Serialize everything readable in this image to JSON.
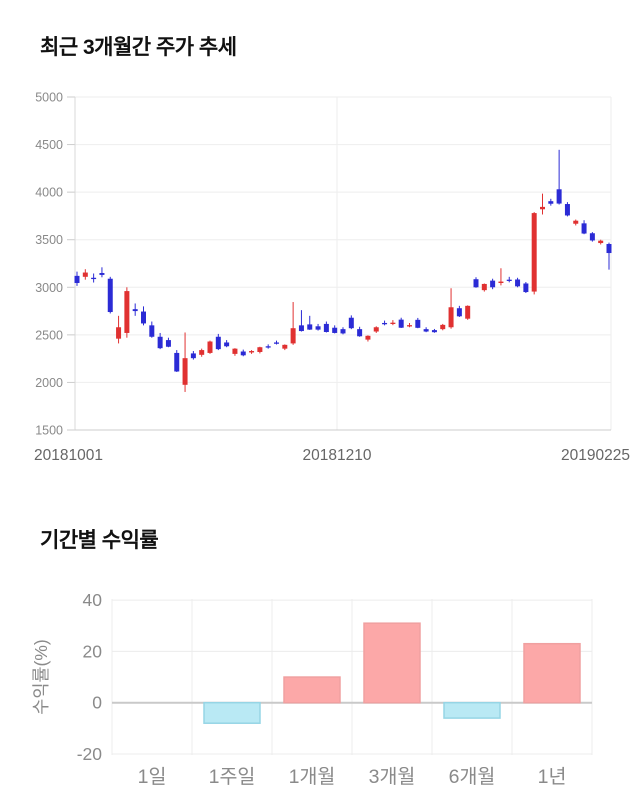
{
  "chart_data": [
    {
      "type": "candlestick",
      "title": "최근 3개월간 주가 추세",
      "xlabel": "",
      "ylabel": "",
      "y_ticks": [
        5000,
        4500,
        4000,
        3500,
        3000,
        2500,
        2000,
        1500
      ],
      "ylim": [
        1500,
        5000
      ],
      "x_tick_labels": [
        "20181001",
        "20181210",
        "20190225"
      ],
      "grid": true,
      "colors": {
        "up": "#e03131",
        "down": "#2b2bd5",
        "grid_line": "#eeeeee",
        "axis_line": "#cccccc",
        "tick_text": "#898989",
        "date_text": "#666666"
      },
      "candles_ohlc": [
        [
          3120,
          3165,
          3015,
          3045
        ],
        [
          3110,
          3190,
          3080,
          3155
        ],
        [
          3100,
          3145,
          3050,
          3090
        ],
        [
          3150,
          3210,
          3105,
          3130
        ],
        [
          3090,
          3110,
          2725,
          2740
        ],
        [
          2460,
          2700,
          2410,
          2580
        ],
        [
          2520,
          3000,
          2470,
          2960
        ],
        [
          2770,
          2830,
          2700,
          2750
        ],
        [
          2745,
          2800,
          2600,
          2620
        ],
        [
          2600,
          2640,
          2470,
          2480
        ],
        [
          2480,
          2520,
          2350,
          2360
        ],
        [
          2445,
          2470,
          2370,
          2375
        ],
        [
          2310,
          2340,
          2110,
          2115
        ],
        [
          1975,
          2525,
          1900,
          2255
        ],
        [
          2305,
          2330,
          2240,
          2255
        ],
        [
          2290,
          2355,
          2270,
          2340
        ],
        [
          2310,
          2440,
          2300,
          2430
        ],
        [
          2480,
          2510,
          2340,
          2350
        ],
        [
          2420,
          2445,
          2370,
          2380
        ],
        [
          2300,
          2360,
          2280,
          2355
        ],
        [
          2325,
          2345,
          2275,
          2285
        ],
        [
          2315,
          2340,
          2300,
          2330
        ],
        [
          2320,
          2375,
          2305,
          2370
        ],
        [
          2380,
          2400,
          2355,
          2378
        ],
        [
          2420,
          2440,
          2398,
          2418
        ],
        [
          2355,
          2400,
          2340,
          2395
        ],
        [
          2410,
          2845,
          2395,
          2570
        ],
        [
          2600,
          2760,
          2535,
          2540
        ],
        [
          2610,
          2700,
          2552,
          2555
        ],
        [
          2590,
          2615,
          2545,
          2555
        ],
        [
          2615,
          2640,
          2525,
          2530
        ],
        [
          2575,
          2600,
          2515,
          2520
        ],
        [
          2560,
          2580,
          2505,
          2515
        ],
        [
          2680,
          2705,
          2560,
          2570
        ],
        [
          2560,
          2585,
          2480,
          2485
        ],
        [
          2450,
          2495,
          2430,
          2490
        ],
        [
          2535,
          2590,
          2520,
          2580
        ],
        [
          2625,
          2650,
          2600,
          2622
        ],
        [
          2625,
          2655,
          2602,
          2628
        ],
        [
          2660,
          2680,
          2572,
          2575
        ],
        [
          2600,
          2625,
          2580,
          2602
        ],
        [
          2658,
          2678,
          2570,
          2574
        ],
        [
          2560,
          2580,
          2528,
          2535
        ],
        [
          2550,
          2562,
          2522,
          2528
        ],
        [
          2560,
          2615,
          2548,
          2605
        ],
        [
          2580,
          2990,
          2565,
          2790
        ],
        [
          2780,
          2805,
          2688,
          2695
        ],
        [
          2670,
          2810,
          2658,
          2805
        ],
        [
          3085,
          3105,
          2995,
          3000
        ],
        [
          2970,
          3040,
          2955,
          3035
        ],
        [
          3070,
          3090,
          2980,
          3000
        ],
        [
          3045,
          3200,
          3020,
          3060
        ],
        [
          3080,
          3110,
          3052,
          3078
        ],
        [
          3082,
          3100,
          3000,
          3010
        ],
        [
          3040,
          3055,
          2940,
          2950
        ],
        [
          2955,
          3790,
          2925,
          3780
        ],
        [
          3820,
          3985,
          3765,
          3845
        ],
        [
          3905,
          3930,
          3858,
          3878
        ],
        [
          4030,
          4445,
          3870,
          3880
        ],
        [
          3875,
          3895,
          3745,
          3755
        ],
        [
          3668,
          3712,
          3650,
          3700
        ],
        [
          3672,
          3705,
          3558,
          3565
        ],
        [
          3568,
          3580,
          3480,
          3492
        ],
        [
          3465,
          3500,
          3450,
          3490
        ],
        [
          3455,
          3470,
          3185,
          3360
        ]
      ]
    },
    {
      "type": "bar",
      "title": "기간별 수익률",
      "xlabel": "",
      "ylabel": "수익률(%)",
      "categories": [
        "1일",
        "1주일",
        "1개월",
        "3개월",
        "6개월",
        "1년"
      ],
      "values": [
        0,
        -8,
        10,
        31,
        -6,
        23
      ],
      "y_ticks": [
        40,
        20,
        0,
        -20
      ],
      "ylim": [
        -25,
        42
      ],
      "grid": true,
      "colors": {
        "positive_fill": "#fca8a8",
        "positive_border": "#f0a0a0",
        "negative_fill": "#b9e9f4",
        "negative_border": "#96d5e5",
        "grid_line": "#ececec",
        "zero_line": "#c9c9c9",
        "text": "#8a8a8a"
      }
    }
  ]
}
